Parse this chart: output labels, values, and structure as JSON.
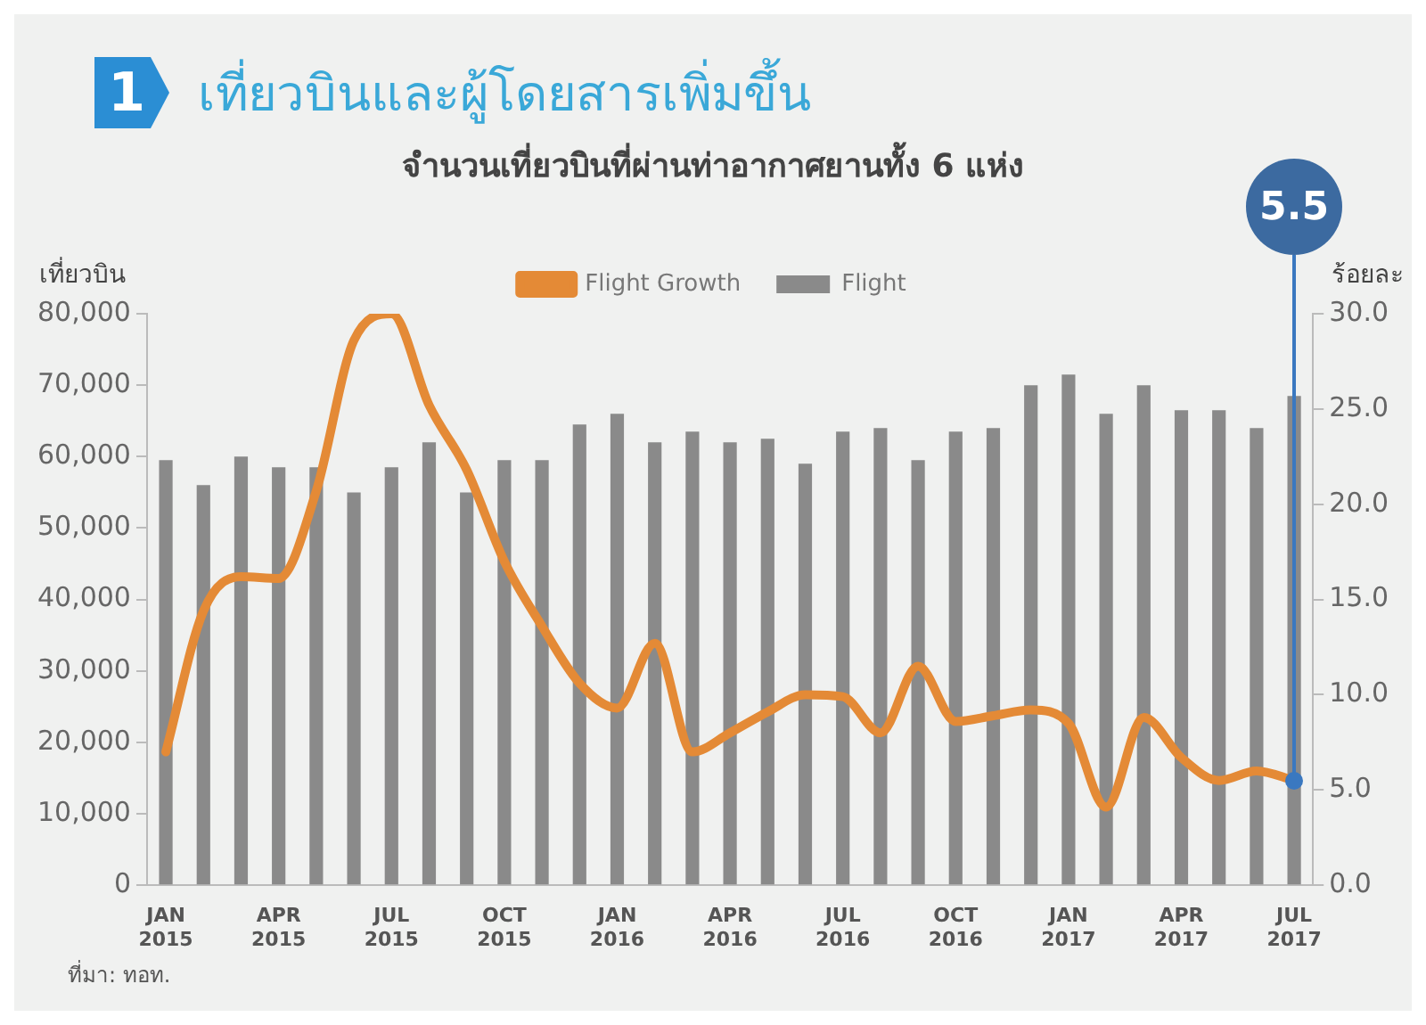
{
  "chart_data": {
    "type": "bar",
    "title": "เที่ยวบินและผู้โดยสารเพิ่มขึ้น",
    "subtitle": "จำนวนเที่ยวบินที่ผ่านท่าอากาศยานทั้ง 6 แห่ง",
    "ylabel": "เที่ยวบิน",
    "y2label": "ร้อยละ",
    "categories": [
      "JAN 2015",
      null,
      null,
      "APR 2015",
      null,
      null,
      "JUL 2015",
      null,
      null,
      "OCT 2015",
      null,
      null,
      "JAN 2016",
      null,
      null,
      "APR 2016",
      null,
      null,
      "JUL 2016",
      null,
      null,
      "OCT 2016",
      null,
      null,
      "JAN 2017",
      null,
      null,
      "APR 2017",
      null,
      null,
      "JUL 2017"
    ],
    "series": [
      {
        "name": "Flight",
        "color": "#8a8a8a",
        "values": [
          59500,
          56000,
          60000,
          58500,
          58500,
          55000,
          58500,
          62000,
          55000,
          59500,
          59500,
          64500,
          66000,
          62000,
          63500,
          62000,
          62500,
          59000,
          63500,
          64000,
          59500,
          63500,
          64000,
          70000,
          71500,
          66000,
          70000,
          66500,
          66500,
          64000,
          68500
        ]
      },
      {
        "name": "Flight Growth",
        "type": "line",
        "axis": "y2",
        "color": "#e48a36",
        "values": [
          7.0,
          14.4,
          16.2,
          16.1,
          20.7,
          28.6,
          30.0,
          25.2,
          21.8,
          17.0,
          13.6,
          10.6,
          9.3,
          12.7,
          7.0,
          8.0,
          9.1,
          10.0,
          9.9,
          8.0,
          11.5,
          8.6,
          8.9,
          9.2,
          8.5,
          4.1,
          8.8,
          6.7,
          5.5,
          6.0,
          5.5
        ]
      }
    ],
    "ylim": [
      0,
      80000
    ],
    "yticks": [
      {
        "value": 0,
        "label": "0"
      },
      {
        "value": 10000,
        "label": "10,000"
      },
      {
        "value": 20000,
        "label": "20,000"
      },
      {
        "value": 30000,
        "label": "30,000"
      },
      {
        "value": 40000,
        "label": "40,000"
      },
      {
        "value": 50000,
        "label": "50,000"
      },
      {
        "value": 60000,
        "label": "60,000"
      },
      {
        "value": 70000,
        "label": "70,000"
      },
      {
        "value": 80000,
        "label": "80,000"
      }
    ],
    "y2lim": [
      0,
      30
    ],
    "y2ticks": [
      {
        "value": 0,
        "label": "0.0"
      },
      {
        "value": 5,
        "label": "5.0"
      },
      {
        "value": 10,
        "label": "10.0"
      },
      {
        "value": 15,
        "label": "15.0"
      },
      {
        "value": 20,
        "label": "20.0"
      },
      {
        "value": 25,
        "label": "25.0"
      },
      {
        "value": 30,
        "label": "30.0"
      }
    ],
    "grid": false,
    "legend": "top",
    "marker": "none",
    "line_style": "solid",
    "annotations": [
      "1",
      "5.5",
      "ที่มา: ทอท."
    ]
  }
}
